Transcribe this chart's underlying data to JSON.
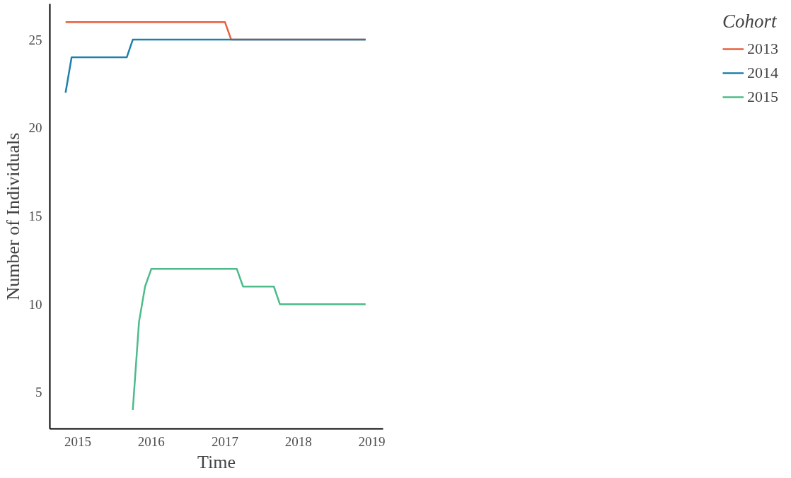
{
  "chart_data": {
    "type": "line",
    "xlabel": "Time",
    "ylabel": "Number of Individuals",
    "legend_title": "Cohort",
    "xlim": [
      "2014-08-15",
      "2019-02-26"
    ],
    "xticks": [
      "2015",
      "2016",
      "2017",
      "2018",
      "2019"
    ],
    "ylim": [
      2.93,
      27.03
    ],
    "yticks": [
      5,
      10,
      15,
      20,
      25
    ],
    "grid": false,
    "legend": "right",
    "line_style": "solid",
    "series": [
      {
        "name": "2013",
        "color": "#e8603c",
        "x": [
          "2014-11",
          "2017-01",
          "2017-02",
          "2018-12"
        ],
        "values": [
          26,
          26,
          25,
          25
        ]
      },
      {
        "name": "2014",
        "color": "#1f7fab",
        "x": [
          "2014-11",
          "2014-12",
          "2015-09",
          "2015-10",
          "2018-12"
        ],
        "values": [
          22,
          24,
          24,
          25,
          25
        ]
      },
      {
        "name": "2015",
        "color": "#4dbb8a",
        "x": [
          "2015-10",
          "2015-11",
          "2015-12",
          "2016-01",
          "2017-03",
          "2017-04",
          "2017-09",
          "2017-10",
          "2018-12"
        ],
        "values": [
          4,
          9,
          11,
          12,
          12,
          11,
          11,
          10,
          10
        ]
      }
    ]
  }
}
